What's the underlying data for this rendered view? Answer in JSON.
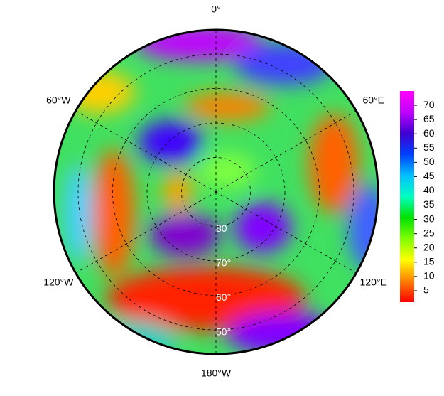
{
  "chart_data": {
    "type": "polar-map",
    "meridians": [
      {
        "value": 0,
        "label": "0°"
      },
      {
        "value": 60,
        "label": "60°E"
      },
      {
        "value": 120,
        "label": "120°E"
      },
      {
        "value": 180,
        "label": "180°W"
      },
      {
        "value": -120,
        "label": "120°W"
      },
      {
        "value": -60,
        "label": "60°W"
      }
    ],
    "parallels": [
      {
        "value": 80,
        "label": "80"
      },
      {
        "value": 70,
        "label": "70°"
      },
      {
        "value": 60,
        "label": "60°"
      },
      {
        "value": 50,
        "label": "50°"
      }
    ],
    "latlim": [
      90,
      43
    ],
    "colorbar": {
      "lim": [
        1,
        75
      ],
      "ticks": [
        5,
        10,
        15,
        20,
        25,
        30,
        35,
        40,
        45,
        50,
        55,
        60,
        65,
        70
      ],
      "colormap": [
        "#ff0000",
        "#ff8000",
        "#ffff00",
        "#80ff00",
        "#00e000",
        "#00ffc0",
        "#00c0ff",
        "#0040ff",
        "#4000d0",
        "#c000ff",
        "#ff00ff"
      ]
    }
  }
}
